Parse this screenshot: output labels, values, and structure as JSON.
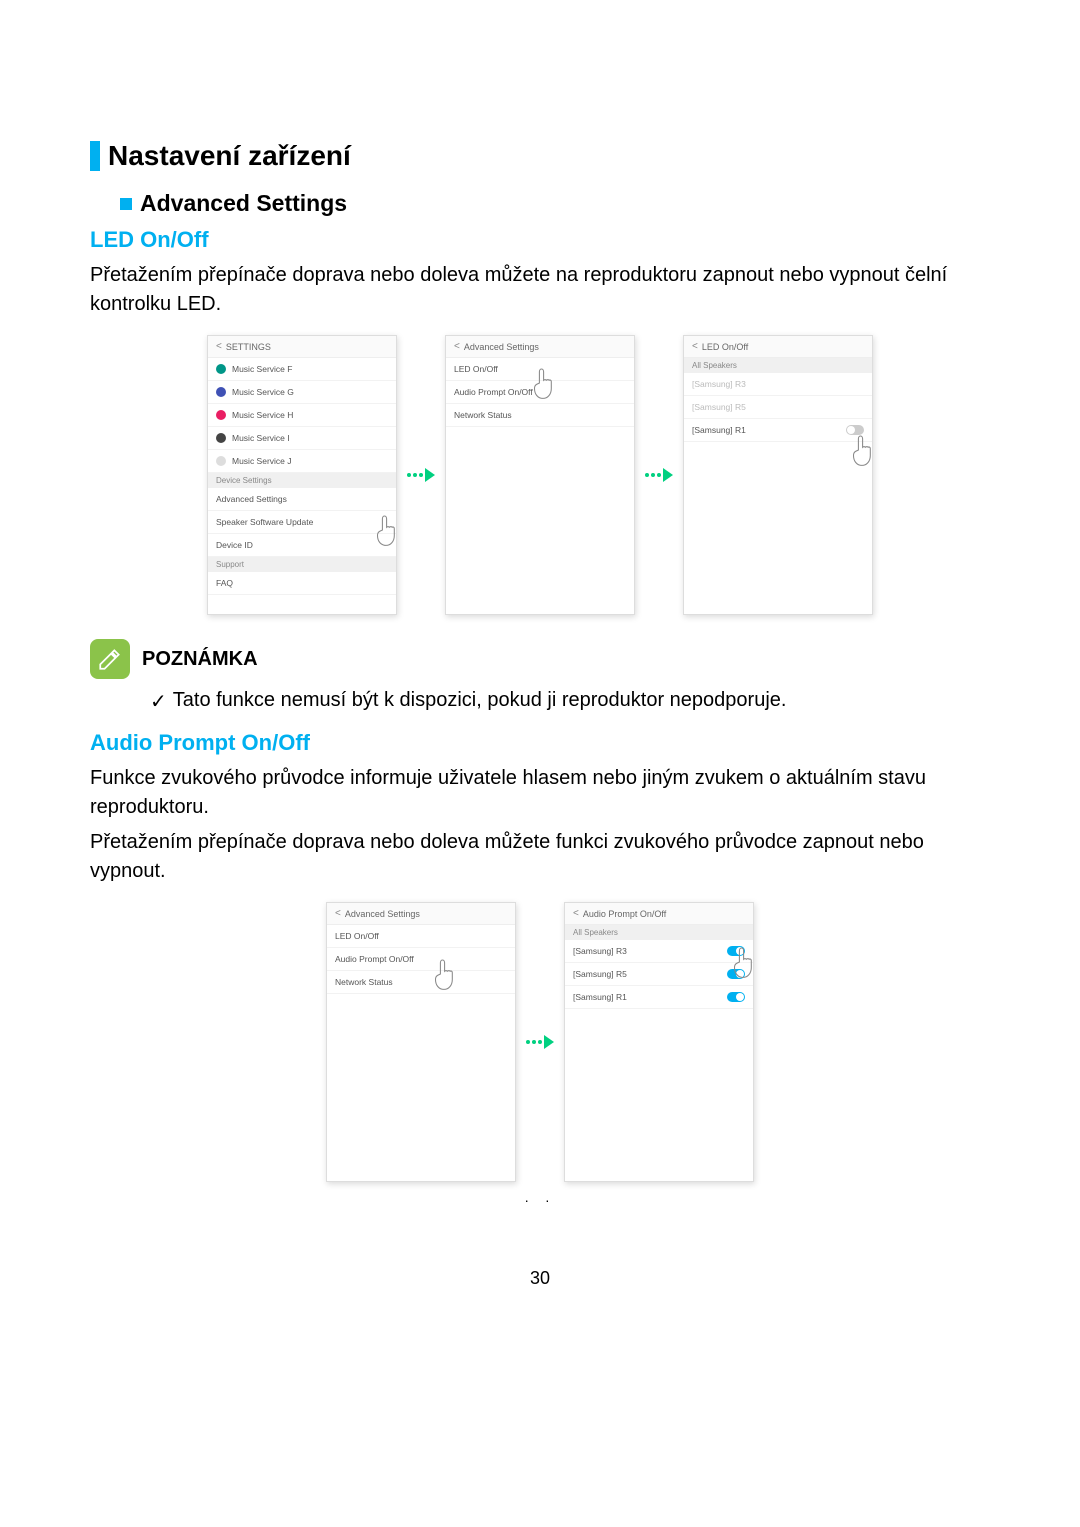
{
  "headings": {
    "h1": "Nastavení zařízení",
    "h2": "Advanced Settings",
    "h3_led": "LED On/Off",
    "h3_audio": "Audio Prompt On/Off"
  },
  "text": {
    "led_body": "Přetažením přepínače doprava nebo doleva můžete na reproduktoru zapnout nebo vypnout čelní kontrolku LED.",
    "audio_body1": "Funkce zvukového průvodce informuje uživatele hlasem nebo jiným zvukem o aktuálním stavu reproduktoru.",
    "audio_body2": "Přetažením přepínače doprava nebo doleva můžete funkci zvukového průvodce zapnout nebo vypnout."
  },
  "note": {
    "label": "POZNÁMKA",
    "check": "✓",
    "item": "Tato funkce nemusí být k dispozici, pokud ji reproduktor nepodporuje."
  },
  "settings_screen": {
    "title": "SETTINGS",
    "services": [
      {
        "label": "Music Service F",
        "color": "#009688"
      },
      {
        "label": "Music Service G",
        "color": "#3f51b5"
      },
      {
        "label": "Music Service H",
        "color": "#e91e63"
      },
      {
        "label": "Music Service I",
        "color": "#444444"
      },
      {
        "label": "Music Service J",
        "color": "#dddddd"
      }
    ],
    "device_section": "Device Settings",
    "device_items": [
      "Advanced Settings",
      "Speaker Software Update",
      "Device ID"
    ],
    "support_section": "Support",
    "support_item": "FAQ"
  },
  "adv_screen": {
    "title": "Advanced Settings",
    "items": [
      "LED On/Off",
      "Audio Prompt On/Off",
      "Network Status"
    ]
  },
  "led_screen": {
    "title": "LED On/Off",
    "all": "All Speakers",
    "speakers": [
      {
        "label": "[Samsung] R3",
        "on": false,
        "disabled": true
      },
      {
        "label": "[Samsung] R5",
        "on": false,
        "disabled": true
      },
      {
        "label": "[Samsung] R1",
        "on": false,
        "disabled": false
      }
    ]
  },
  "audio_screen": {
    "title": "Audio Prompt On/Off",
    "all": "All Speakers",
    "speakers": [
      {
        "label": "[Samsung] R3",
        "on": true
      },
      {
        "label": "[Samsung] R5",
        "on": true
      },
      {
        "label": "[Samsung] R1",
        "on": true
      }
    ]
  },
  "page": {
    "num": "30",
    "dots": "· ·"
  },
  "colors": {
    "accent": "#00b0f0",
    "note_icon": "#8bc34a",
    "arrow": "#00d080"
  }
}
